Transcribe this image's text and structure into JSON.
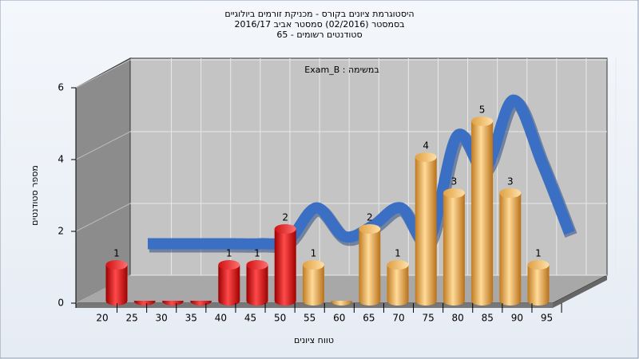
{
  "chart_data": {
    "type": "bar3d",
    "title": "היסטוגרמת ציונים בקורס - מכניקת זורמים ביולוגיים",
    "subtitle_lines": [
      "בסמסטר (02/2016)  סמסטר אביב 2016/17",
      "סטודנטים רשומים - 65"
    ],
    "annotation": "Exam_B : במשימה",
    "x_label": "טווח ציונים",
    "y_label": "מספר סטודנטים",
    "categories": [
      "20",
      "25",
      "30",
      "35",
      "40",
      "45",
      "50",
      "55",
      "60",
      "65",
      "70",
      "75",
      "80",
      "85",
      "90",
      "95"
    ],
    "values": [
      1,
      0,
      0,
      0,
      1,
      1,
      2,
      1,
      0,
      2,
      1,
      4,
      3,
      5,
      3,
      1
    ],
    "colors": [
      "red",
      "red",
      "red",
      "red",
      "red",
      "red",
      "red",
      "orange",
      "orange",
      "orange",
      "orange",
      "orange",
      "orange",
      "orange",
      "orange",
      "orange"
    ],
    "curve": {
      "color": "#3a6fc4",
      "values": [
        0.7,
        0.7,
        0.7,
        0.7,
        0.7,
        0.8,
        1.7,
        0.9,
        1.2,
        1.7,
        0.8,
        3.7,
        2.8,
        4.7,
        3.0,
        1.0
      ]
    },
    "ylim": [
      0,
      6
    ],
    "yticks": [
      0,
      2,
      4,
      6
    ],
    "grid": true
  }
}
